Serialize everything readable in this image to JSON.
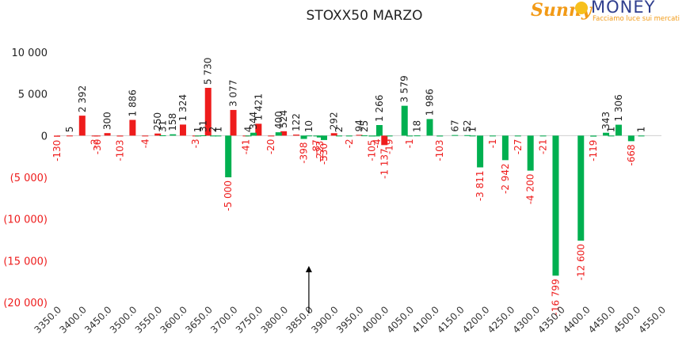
{
  "chart_data": {
    "type": "bar",
    "title": "STOXX50 MARZO",
    "xlabel": "",
    "ylabel": "",
    "ylim": [
      -20000,
      10000
    ],
    "yticks": [
      10000,
      5000,
      0,
      -5000,
      -10000,
      -15000,
      -20000
    ],
    "ytick_labels": [
      "10 000",
      "5 000",
      "0",
      "(5 000)",
      "(10 000)",
      "(15 000)",
      "(20 000)"
    ],
    "x_tick_labels": [
      "3350.0",
      "3400.0",
      "3450.0",
      "3500.0",
      "3550.0",
      "3600.0",
      "3650.0",
      "3700.0",
      "3750.0",
      "3800.0",
      "3850.0",
      "3900.0",
      "3950.0",
      "4000.0",
      "4050.0",
      "4100.0",
      "4150.0",
      "4200.0",
      "4250.0",
      "4300.0",
      "4350.0",
      "4400.0",
      "4450.0",
      "4500.0",
      "4550.0"
    ],
    "x_tick_values": [
      3350,
      3400,
      3450,
      3500,
      3550,
      3600,
      3650,
      3700,
      3750,
      3800,
      3850,
      3900,
      3950,
      4000,
      4050,
      4100,
      4150,
      4200,
      4250,
      4300,
      4350,
      4400,
      4450,
      4500,
      4550
    ],
    "arrow_x": 3850,
    "colors": {
      "put": "#ee1c1c",
      "call": "#00b050",
      "negative_label": "#ee1c1c",
      "positive_label": "#222222"
    },
    "series": [
      {
        "group": "put",
        "points": [
          {
            "x": 3350,
            "y": -130,
            "label": "-130"
          },
          {
            "x": 3375,
            "y": 5,
            "label": "5"
          },
          {
            "x": 3400,
            "y": 2392,
            "label": "2 392"
          },
          {
            "x": 3425,
            "y": -2,
            "label": "-2"
          },
          {
            "x": 3430,
            "y": -30,
            "label": "-30"
          },
          {
            "x": 3450,
            "y": 300,
            "label": "300"
          },
          {
            "x": 3475,
            "y": -103,
            "label": "-103"
          },
          {
            "x": 3500,
            "y": 1886,
            "label": "1 886"
          },
          {
            "x": 3525,
            "y": -4,
            "label": "-4"
          },
          {
            "x": 3550,
            "y": 250,
            "label": "250"
          },
          {
            "x": 3600,
            "y": 1324,
            "label": "1 324"
          },
          {
            "x": 3625,
            "y": -3,
            "label": "-3"
          },
          {
            "x": 3650,
            "y": 5730,
            "label": "5 730"
          },
          {
            "x": 3700,
            "y": 3077,
            "label": "3 077"
          },
          {
            "x": 3725,
            "y": -41,
            "label": "-41"
          },
          {
            "x": 3750,
            "y": 1421,
            "label": "1 421"
          },
          {
            "x": 3775,
            "y": -20,
            "label": "-20"
          },
          {
            "x": 3800,
            "y": 524,
            "label": "524"
          },
          {
            "x": 3825,
            "y": 122,
            "label": "122"
          },
          {
            "x": 3900,
            "y": 292,
            "label": "292"
          },
          {
            "x": 3950,
            "y": 94,
            "label": "94"
          },
          {
            "x": 4000,
            "y": -1137,
            "label": "-1 137"
          }
        ]
      },
      {
        "group": "call",
        "points": [
          {
            "x": 3560,
            "y": 31,
            "label": "31"
          },
          {
            "x": 3580,
            "y": 158,
            "label": "158"
          },
          {
            "x": 3630,
            "y": 1,
            "label": "1"
          },
          {
            "x": 3640,
            "y": 31,
            "label": "31"
          },
          {
            "x": 3660,
            "y": 2,
            "label": "2"
          },
          {
            "x": 3670,
            "y": 1,
            "label": "1"
          },
          {
            "x": 3690,
            "y": -5000,
            "label": "-5 000"
          },
          {
            "x": 3730,
            "y": 4,
            "label": "4"
          },
          {
            "x": 3740,
            "y": 344,
            "label": "344"
          },
          {
            "x": 3790,
            "y": 400,
            "label": "400"
          },
          {
            "x": 3840,
            "y": -398,
            "label": "-398"
          },
          {
            "x": 3850,
            "y": 10,
            "label": "10"
          },
          {
            "x": 3865,
            "y": -87,
            "label": "-87"
          },
          {
            "x": 3872,
            "y": -223,
            "label": "-223"
          },
          {
            "x": 3880,
            "y": -530,
            "label": "-530"
          },
          {
            "x": 3910,
            "y": 2,
            "label": "2"
          },
          {
            "x": 3930,
            "y": -2,
            "label": "-2"
          },
          {
            "x": 3960,
            "y": 25,
            "label": "25"
          },
          {
            "x": 3975,
            "y": -105,
            "label": "-105"
          },
          {
            "x": 3985,
            "y": -4,
            "label": "-4"
          },
          {
            "x": 3990,
            "y": 1266,
            "label": "1 266"
          },
          {
            "x": 4010,
            "y": -19,
            "label": "-19"
          },
          {
            "x": 4040,
            "y": 3579,
            "label": "3 579"
          },
          {
            "x": 4050,
            "y": -1,
            "label": "-1"
          },
          {
            "x": 4065,
            "y": 18,
            "label": "18"
          },
          {
            "x": 4090,
            "y": 1986,
            "label": "1 986"
          },
          {
            "x": 4110,
            "y": -103,
            "label": "-103"
          },
          {
            "x": 4140,
            "y": 67,
            "label": "67"
          },
          {
            "x": 4165,
            "y": 52,
            "label": "52"
          },
          {
            "x": 4175,
            "y": 1,
            "label": "1"
          },
          {
            "x": 4190,
            "y": -3811,
            "label": "-3 811"
          },
          {
            "x": 4215,
            "y": -1,
            "label": "-1"
          },
          {
            "x": 4240,
            "y": -2942,
            "label": "-2 942"
          },
          {
            "x": 4265,
            "y": -27,
            "label": "-27"
          },
          {
            "x": 4290,
            "y": -4200,
            "label": "-4 200"
          },
          {
            "x": 4315,
            "y": -21,
            "label": "-21"
          },
          {
            "x": 4340,
            "y": -16799,
            "label": "-16 799"
          },
          {
            "x": 4390,
            "y": -12600,
            "label": "-12 600"
          },
          {
            "x": 4415,
            "y": -119,
            "label": "-119"
          },
          {
            "x": 4440,
            "y": 343,
            "label": "343"
          },
          {
            "x": 4450,
            "y": 1,
            "label": "1"
          },
          {
            "x": 4465,
            "y": 1306,
            "label": "1 306"
          },
          {
            "x": 4490,
            "y": -668,
            "label": "-668"
          },
          {
            "x": 4510,
            "y": 1,
            "label": "1"
          }
        ]
      }
    ]
  },
  "logo": {
    "brand_left": "Sunny",
    "brand_right": "MONEY",
    "tagline": "Facciamo luce sui mercati"
  }
}
